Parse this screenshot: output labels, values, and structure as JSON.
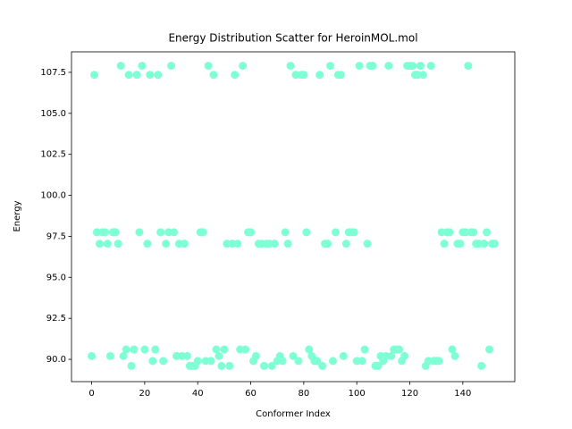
{
  "chart_data": {
    "type": "scatter",
    "title": "Energy Distribution Scatter for HeroinMOL.mol",
    "x_label": "Conformer Index",
    "y_label": "Energy",
    "color": "#7fffd4",
    "xlim": [
      -7.6,
      159.6
    ],
    "ylim": [
      88.64,
      108.75
    ],
    "xticks": [
      0,
      20,
      40,
      60,
      80,
      100,
      120,
      140
    ],
    "yticks": [
      {
        "value": 90,
        "label": "90.0"
      },
      92.5,
      {
        "value": 95,
        "label": "95.0"
      },
      97.5,
      {
        "value": 100,
        "label": "100.0"
      },
      102.5,
      {
        "value": 105,
        "label": "105.0"
      },
      107.5
    ],
    "x": [
      0,
      1,
      2,
      3,
      4,
      5,
      6,
      7,
      8,
      9,
      10,
      11,
      12,
      13,
      14,
      15,
      16,
      17,
      18,
      19,
      20,
      21,
      22,
      23,
      24,
      25,
      26,
      27,
      28,
      29,
      30,
      31,
      32,
      33,
      34,
      35,
      36,
      37,
      38,
      39,
      40,
      41,
      42,
      43,
      44,
      45,
      46,
      47,
      48,
      49,
      50,
      51,
      52,
      53,
      54,
      55,
      56,
      57,
      58,
      59,
      60,
      61,
      62,
      63,
      64,
      65,
      66,
      67,
      68,
      69,
      70,
      71,
      72,
      73,
      74,
      75,
      76,
      77,
      78,
      79,
      80,
      81,
      82,
      83,
      84,
      85,
      86,
      87,
      88,
      89,
      90,
      91,
      92,
      93,
      94,
      95,
      96,
      97,
      98,
      99,
      100,
      101,
      102,
      103,
      104,
      105,
      106,
      107,
      108,
      109,
      110,
      111,
      112,
      113,
      114,
      115,
      116,
      117,
      118,
      119,
      120,
      121,
      122,
      123,
      124,
      125,
      126,
      127,
      128,
      129,
      130,
      131,
      132,
      133,
      134,
      135,
      136,
      137,
      138,
      139,
      140,
      141,
      142,
      143,
      144,
      145,
      146,
      147,
      148,
      149,
      150,
      151,
      152
    ],
    "values": [
      90.2,
      107.35,
      97.75,
      97.05,
      97.75,
      97.75,
      97.05,
      90.2,
      97.75,
      97.75,
      97.05,
      107.9,
      90.2,
      90.6,
      107.35,
      89.6,
      90.6,
      107.35,
      97.75,
      107.9,
      90.6,
      97.05,
      107.35,
      89.9,
      90.6,
      107.35,
      97.75,
      89.9,
      97.05,
      97.75,
      107.9,
      97.75,
      90.2,
      97.05,
      90.2,
      97.05,
      90.2,
      89.6,
      89.6,
      89.6,
      89.9,
      97.75,
      97.75,
      89.9,
      107.9,
      89.9,
      107.35,
      90.6,
      90.2,
      89.6,
      90.6,
      97.05,
      89.6,
      97.05,
      107.35,
      97.05,
      90.6,
      107.9,
      90.6,
      97.75,
      97.75,
      89.9,
      90.2,
      97.05,
      97.05,
      89.6,
      97.05,
      97.05,
      89.6,
      97.05,
      89.9,
      90.2,
      89.9,
      97.75,
      97.05,
      107.9,
      90.2,
      107.35,
      89.9,
      107.35,
      107.35,
      97.75,
      90.6,
      90.2,
      89.9,
      89.9,
      107.35,
      89.6,
      97.05,
      97.05,
      107.9,
      89.9,
      97.75,
      107.35,
      107.35,
      90.2,
      97.05,
      97.75,
      97.75,
      97.75,
      89.9,
      107.9,
      89.9,
      90.6,
      97.05,
      107.9,
      107.9,
      89.6,
      89.6,
      90.2,
      89.9,
      90.2,
      107.9,
      90.2,
      90.6,
      90.6,
      90.6,
      89.9,
      90.2,
      107.9,
      107.9,
      107.9,
      107.35,
      107.35,
      107.9,
      107.35,
      89.6,
      89.9,
      107.9,
      89.9,
      89.9,
      89.9,
      97.75,
      97.05,
      97.75,
      97.75,
      90.6,
      90.2,
      97.05,
      97.05,
      97.75,
      97.75,
      107.9,
      97.75,
      97.75,
      97.05,
      97.05,
      89.6,
      97.05,
      97.75,
      90.6,
      97.05,
      97.05
    ]
  }
}
